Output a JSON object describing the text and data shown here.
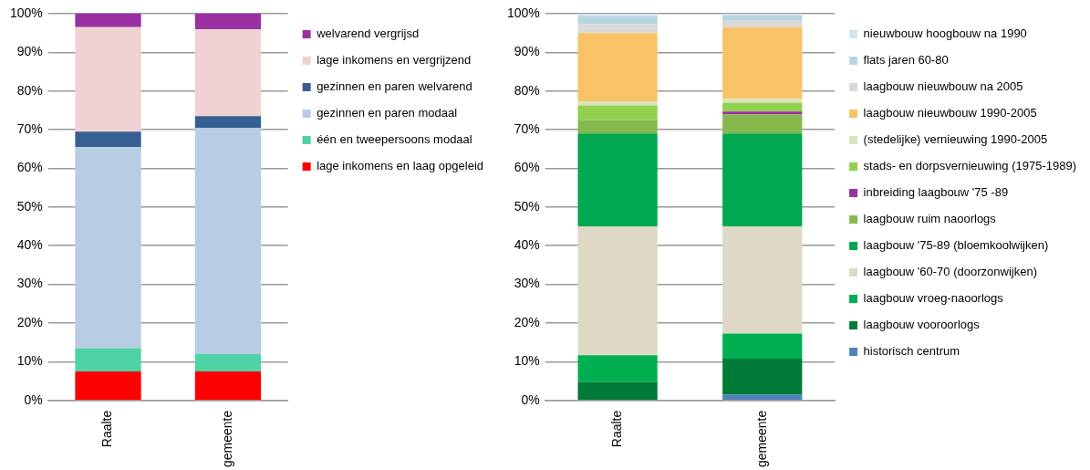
{
  "chart_data": [
    {
      "type": "bar",
      "stacked": true,
      "categories": [
        "Raalte",
        "gemeente"
      ],
      "grid": "y",
      "legend": "right",
      "ylim": [
        0,
        100
      ],
      "yticks": [
        {
          "value": 0,
          "label": "0%"
        },
        {
          "value": 10,
          "label": "10%"
        },
        {
          "value": 20,
          "label": "20%"
        },
        {
          "value": 30,
          "label": "30%"
        },
        {
          "value": 40,
          "label": "40%"
        },
        {
          "value": 50,
          "label": "50%"
        },
        {
          "value": 60,
          "label": "60%"
        },
        {
          "value": 70,
          "label": "70%"
        },
        {
          "value": 80,
          "label": "80%"
        },
        {
          "value": 90,
          "label": "90%"
        },
        {
          "value": 100,
          "label": "100%"
        }
      ],
      "series": [
        {
          "name": "lage inkomens en laag opgeleid",
          "color": "#ff0000",
          "values": [
            7.5,
            7.5
          ]
        },
        {
          "name": "één en tweepersoons modaal",
          "color": "#4dd3a5",
          "values": [
            6,
            4.5
          ]
        },
        {
          "name": "gezinnen en paren modaal",
          "color": "#b8cce4",
          "values": [
            52,
            58.5
          ]
        },
        {
          "name": "gezinnen en paren welvarend",
          "color": "#366092",
          "values": [
            4,
            3
          ]
        },
        {
          "name": "lage inkomens en vergrijzend",
          "color": "#f0d2d3",
          "values": [
            27,
            22.5
          ]
        },
        {
          "name": "welvarend vergrijsd",
          "color": "#9b30a2",
          "values": [
            3.5,
            4
          ]
        }
      ]
    },
    {
      "type": "bar",
      "stacked": true,
      "categories": [
        "Raalte",
        "gemeente"
      ],
      "grid": "y",
      "legend": "right",
      "ylim": [
        0,
        100
      ],
      "yticks": [
        {
          "value": 0,
          "label": "0%"
        },
        {
          "value": 10,
          "label": "10%"
        },
        {
          "value": 20,
          "label": "20%"
        },
        {
          "value": 30,
          "label": "30%"
        },
        {
          "value": 40,
          "label": "40%"
        },
        {
          "value": 50,
          "label": "50%"
        },
        {
          "value": 60,
          "label": "60%"
        },
        {
          "value": 70,
          "label": "70%"
        },
        {
          "value": 80,
          "label": "80%"
        },
        {
          "value": 90,
          "label": "90%"
        },
        {
          "value": 100,
          "label": "100%"
        }
      ],
      "series": [
        {
          "name": "historisch centrum",
          "color": "#4f81bd",
          "values": [
            0,
            1.5
          ]
        },
        {
          "name": "laagbouw vooroorlogs",
          "color": "#007a37",
          "values": [
            4.7,
            9.3
          ]
        },
        {
          "name": "laagbouw vroeg-naoorlogs",
          "color": "#00b050",
          "values": [
            7,
            6.5
          ]
        },
        {
          "name": "laagbouw '60-70 (doorzonwijken)",
          "color": "#ddd9c4",
          "values": [
            33.3,
            27.7
          ]
        },
        {
          "name": "laagbouw '75-89 (bloemkoolwijken)",
          "color": "#00a84f",
          "values": [
            24,
            24
          ]
        },
        {
          "name": "laagbouw ruim naoorlogs",
          "color": "#86b84e",
          "values": [
            3.5,
            5
          ]
        },
        {
          "name": "inbreiding laagbouw '75 -89",
          "color": "#9b30a2",
          "values": [
            0,
            0.7
          ]
        },
        {
          "name": "stads- en dorpsvernieuwing (1975-1989)",
          "color": "#92d050",
          "values": [
            3.8,
            2.3
          ]
        },
        {
          "name": "(stedelijke) vernieuwing 1990-2005",
          "color": "#d8e4bc",
          "values": [
            1,
            1
          ]
        },
        {
          "name": "laagbouw nieuwbouw 1990-2005",
          "color": "#fac266",
          "values": [
            17.7,
            18.5
          ]
        },
        {
          "name": "laagbouw nieuwbouw na 2005",
          "color": "#d9d9d9",
          "values": [
            2.3,
            1.7
          ]
        },
        {
          "name": "flats jaren 60-80",
          "color": "#b7d5df",
          "values": [
            2,
            1.3
          ]
        },
        {
          "name": "nieuwbouw hoogbouw na 1990",
          "color": "#d2e4ec",
          "values": [
            0.7,
            0.5
          ]
        }
      ]
    }
  ]
}
